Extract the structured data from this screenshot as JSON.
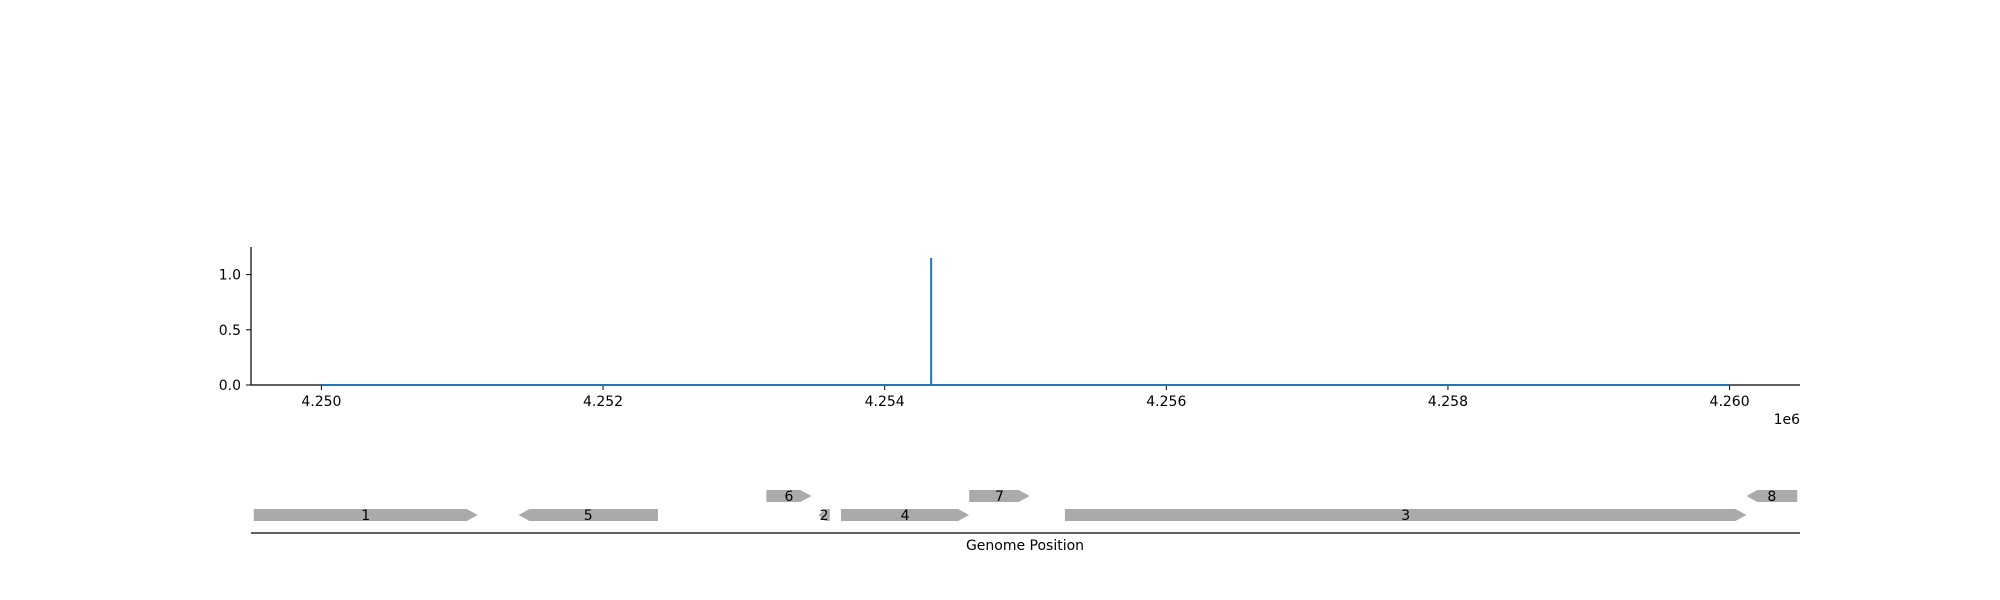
{
  "chart_data": [
    {
      "type": "line",
      "title": "",
      "xlabel": "",
      "ylabel": "",
      "x_offset_label": "1e6",
      "xlim": [
        4249500,
        4260500
      ],
      "ylim": [
        0,
        1.25
      ],
      "x_ticks": [
        4250000,
        4252000,
        4254000,
        4256000,
        4258000,
        4260000
      ],
      "x_tick_labels": [
        "4.250",
        "4.252",
        "4.254",
        "4.256",
        "4.258",
        "4.260"
      ],
      "y_ticks": [
        0,
        0.5,
        1.0
      ],
      "y_tick_labels": [
        "0.0",
        "0.5",
        "1.0"
      ],
      "grid": false,
      "series": [
        {
          "color": "#1f77b4",
          "x": [
            4250000,
            4254330,
            4254330,
            4254330,
            4260000
          ],
          "y": [
            0,
            0,
            1.15,
            0,
            0
          ]
        }
      ]
    },
    {
      "type": "gene-track",
      "xlabel": "Genome Position",
      "xlim": [
        4249500,
        4260500
      ],
      "color": "#aaaaaa",
      "genes": [
        {
          "label": "1",
          "start": 4249520,
          "end": 4251110,
          "strand": "+",
          "row": 0
        },
        {
          "label": "5",
          "start": 4251400,
          "end": 4252390,
          "strand": "-",
          "row": 0
        },
        {
          "label": "6",
          "start": 4253160,
          "end": 4253480,
          "strand": "+",
          "row": 1
        },
        {
          "label": "2",
          "start": 4253530,
          "end": 4253610,
          "strand": "-",
          "row": 0
        },
        {
          "label": "4",
          "start": 4253690,
          "end": 4254600,
          "strand": "+",
          "row": 0
        },
        {
          "label": "7",
          "start": 4254600,
          "end": 4255030,
          "strand": "+",
          "row": 1
        },
        {
          "label": "3",
          "start": 4255280,
          "end": 4260120,
          "strand": "+",
          "row": 0
        },
        {
          "label": "8",
          "start": 4260120,
          "end": 4260480,
          "strand": "-",
          "row": 1
        }
      ]
    }
  ]
}
